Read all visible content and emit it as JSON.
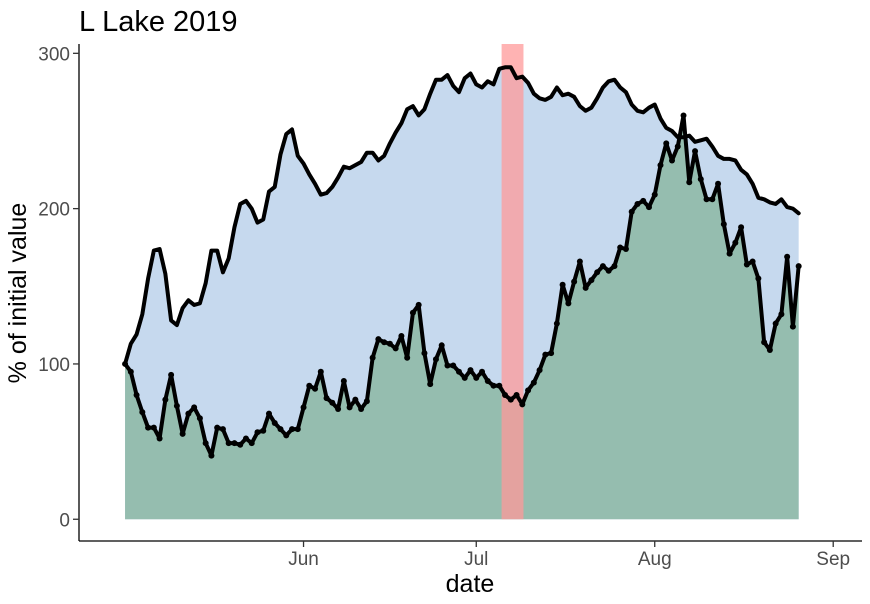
{
  "chart_data": {
    "type": "area",
    "title": "L Lake 2019",
    "xlabel": "date",
    "ylabel": "% of initial value",
    "x_ticks": [
      {
        "label": "Jun",
        "day": 31
      },
      {
        "label": "Jul",
        "day": 61
      },
      {
        "label": "Aug",
        "day": 92
      },
      {
        "label": "Sep",
        "day": 123
      }
    ],
    "y_ticks": [
      0,
      100,
      200,
      300
    ],
    "xlim": [
      -8,
      128
    ],
    "ylim": [
      -14,
      306
    ],
    "grid": false,
    "legend": "none",
    "highlight": {
      "from": 65.4,
      "to": 69.2,
      "color": "#ff9999"
    },
    "series": [
      {
        "fill": "#c6d9ee",
        "line_color": "#000000",
        "points": false,
        "values": [
          [
            0,
            100
          ],
          [
            1,
            113
          ],
          [
            2,
            119
          ],
          [
            3,
            132
          ],
          [
            4,
            155
          ],
          [
            5,
            173
          ],
          [
            6,
            174
          ],
          [
            7,
            158
          ],
          [
            8,
            128
          ],
          [
            9,
            125
          ],
          [
            10,
            136
          ],
          [
            11,
            141
          ],
          [
            12,
            138
          ],
          [
            13,
            139
          ],
          [
            14,
            152
          ],
          [
            15,
            173
          ],
          [
            16,
            173
          ],
          [
            17,
            159
          ],
          [
            18,
            168
          ],
          [
            19,
            188
          ],
          [
            20,
            203
          ],
          [
            21,
            205
          ],
          [
            22,
            200
          ],
          [
            23,
            191
          ],
          [
            24,
            193
          ],
          [
            25,
            211
          ],
          [
            26,
            214
          ],
          [
            27,
            235
          ],
          [
            28,
            248
          ],
          [
            29,
            251
          ],
          [
            30,
            234
          ],
          [
            31,
            229
          ],
          [
            32,
            222
          ],
          [
            33,
            216
          ],
          [
            34,
            209
          ],
          [
            35,
            210
          ],
          [
            36,
            214
          ],
          [
            37,
            220
          ],
          [
            38,
            227
          ],
          [
            39,
            226
          ],
          [
            40,
            228
          ],
          [
            41,
            230
          ],
          [
            42,
            236
          ],
          [
            43,
            236
          ],
          [
            44,
            231
          ],
          [
            45,
            234
          ],
          [
            46,
            242
          ],
          [
            47,
            249
          ],
          [
            48,
            255
          ],
          [
            49,
            264
          ],
          [
            50,
            266
          ],
          [
            51,
            260
          ],
          [
            52,
            264
          ],
          [
            53,
            274
          ],
          [
            54,
            283
          ],
          [
            55,
            283
          ],
          [
            56,
            286
          ],
          [
            57,
            279
          ],
          [
            58,
            275
          ],
          [
            59,
            284
          ],
          [
            60,
            287
          ],
          [
            61,
            280
          ],
          [
            62,
            278
          ],
          [
            63,
            282
          ],
          [
            64,
            280
          ],
          [
            65,
            290
          ],
          [
            66,
            291
          ],
          [
            67,
            291
          ],
          [
            68,
            284
          ],
          [
            69,
            285
          ],
          [
            70,
            281
          ],
          [
            71,
            274
          ],
          [
            72,
            271
          ],
          [
            73,
            270
          ],
          [
            74,
            272
          ],
          [
            75,
            278
          ],
          [
            76,
            273
          ],
          [
            77,
            274
          ],
          [
            78,
            272
          ],
          [
            79,
            266
          ],
          [
            80,
            263
          ],
          [
            81,
            265
          ],
          [
            82,
            271
          ],
          [
            83,
            278
          ],
          [
            84,
            282
          ],
          [
            85,
            283
          ],
          [
            86,
            278
          ],
          [
            87,
            275
          ],
          [
            88,
            267
          ],
          [
            89,
            263
          ],
          [
            90,
            262
          ],
          [
            91,
            265
          ],
          [
            92,
            267
          ],
          [
            93,
            258
          ],
          [
            94,
            252
          ],
          [
            95,
            250
          ],
          [
            96,
            246
          ],
          [
            97,
            246
          ],
          [
            98,
            247
          ],
          [
            99,
            243
          ],
          [
            100,
            244
          ],
          [
            101,
            245
          ],
          [
            102,
            240
          ],
          [
            103,
            234
          ],
          [
            104,
            232
          ],
          [
            105,
            232
          ],
          [
            106,
            231
          ],
          [
            107,
            225
          ],
          [
            108,
            222
          ],
          [
            109,
            216
          ],
          [
            110,
            207
          ],
          [
            111,
            206
          ],
          [
            112,
            204
          ],
          [
            113,
            203
          ],
          [
            114,
            206
          ],
          [
            115,
            201
          ],
          [
            116,
            200
          ],
          [
            117,
            197
          ]
        ]
      },
      {
        "fill": "#95bdaf",
        "line_color": "#000000",
        "points": true,
        "values": [
          [
            0,
            100
          ],
          [
            1,
            95
          ],
          [
            2,
            80
          ],
          [
            3,
            69
          ],
          [
            4,
            59
          ],
          [
            5,
            59
          ],
          [
            6,
            52
          ],
          [
            7,
            77
          ],
          [
            8,
            93
          ],
          [
            9,
            73
          ],
          [
            10,
            55
          ],
          [
            11,
            68
          ],
          [
            12,
            72
          ],
          [
            13,
            65
          ],
          [
            14,
            49
          ],
          [
            15,
            41
          ],
          [
            16,
            59
          ],
          [
            17,
            58
          ],
          [
            18,
            49
          ],
          [
            19,
            49
          ],
          [
            20,
            48
          ],
          [
            21,
            52
          ],
          [
            22,
            49
          ],
          [
            23,
            56
          ],
          [
            24,
            57
          ],
          [
            25,
            68
          ],
          [
            26,
            62
          ],
          [
            27,
            58
          ],
          [
            28,
            54
          ],
          [
            29,
            58
          ],
          [
            30,
            58
          ],
          [
            31,
            72
          ],
          [
            32,
            86
          ],
          [
            33,
            84
          ],
          [
            34,
            95
          ],
          [
            35,
            78
          ],
          [
            36,
            75
          ],
          [
            37,
            71
          ],
          [
            38,
            89
          ],
          [
            39,
            72
          ],
          [
            40,
            77
          ],
          [
            41,
            71
          ],
          [
            42,
            76
          ],
          [
            43,
            104
          ],
          [
            44,
            116
          ],
          [
            45,
            114
          ],
          [
            46,
            113
          ],
          [
            47,
            110
          ],
          [
            48,
            118
          ],
          [
            49,
            104
          ],
          [
            50,
            133
          ],
          [
            51,
            138
          ],
          [
            52,
            107
          ],
          [
            53,
            87
          ],
          [
            54,
            103
          ],
          [
            55,
            112
          ],
          [
            56,
            99
          ],
          [
            57,
            99
          ],
          [
            58,
            95
          ],
          [
            59,
            91
          ],
          [
            60,
            96
          ],
          [
            61,
            91
          ],
          [
            62,
            95
          ],
          [
            63,
            89
          ],
          [
            64,
            86
          ],
          [
            65,
            86
          ],
          [
            66,
            80
          ],
          [
            67,
            77
          ],
          [
            68,
            80
          ],
          [
            69,
            74
          ],
          [
            70,
            83
          ],
          [
            71,
            88
          ],
          [
            72,
            96
          ],
          [
            73,
            106
          ],
          [
            74,
            107
          ],
          [
            75,
            126
          ],
          [
            76,
            151
          ],
          [
            77,
            139
          ],
          [
            78,
            153
          ],
          [
            79,
            166
          ],
          [
            80,
            149
          ],
          [
            81,
            154
          ],
          [
            82,
            159
          ],
          [
            83,
            163
          ],
          [
            84,
            160
          ],
          [
            85,
            163
          ],
          [
            86,
            175
          ],
          [
            87,
            174
          ],
          [
            88,
            198
          ],
          [
            89,
            203
          ],
          [
            90,
            205
          ],
          [
            91,
            201
          ],
          [
            92,
            209
          ],
          [
            93,
            228
          ],
          [
            94,
            242
          ],
          [
            95,
            231
          ],
          [
            96,
            240
          ],
          [
            97,
            260
          ],
          [
            98,
            217
          ],
          [
            99,
            237
          ],
          [
            100,
            219
          ],
          [
            101,
            206
          ],
          [
            102,
            206
          ],
          [
            103,
            216
          ],
          [
            104,
            190
          ],
          [
            105,
            171
          ],
          [
            106,
            178
          ],
          [
            107,
            188
          ],
          [
            108,
            164
          ],
          [
            109,
            166
          ],
          [
            110,
            155
          ],
          [
            111,
            114
          ],
          [
            112,
            109
          ],
          [
            113,
            126
          ],
          [
            114,
            132
          ],
          [
            115,
            169
          ],
          [
            116,
            124
          ],
          [
            117,
            163
          ]
        ]
      }
    ]
  }
}
